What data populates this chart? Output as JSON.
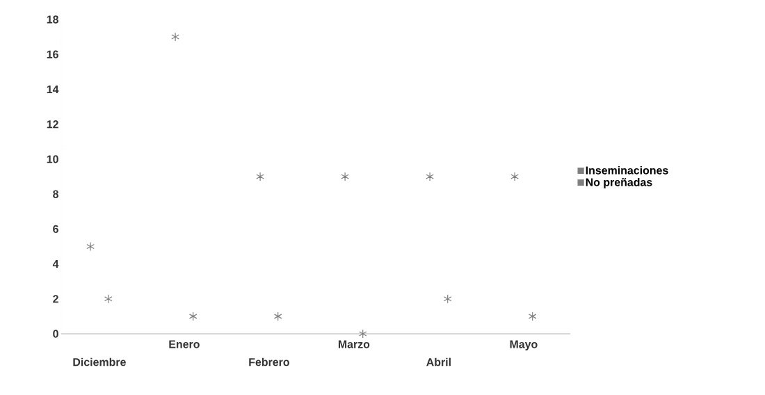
{
  "chart_data": {
    "type": "scatter",
    "categories": [
      "Diciembre",
      "Enero",
      "Febrero",
      "Marzo",
      "Abril",
      "Mayo"
    ],
    "series": [
      {
        "name": "Inseminaciones",
        "color": "#7f7f7f",
        "values": [
          5,
          17,
          9,
          9,
          9,
          9
        ]
      },
      {
        "name": "No preñadas",
        "color": "#7f7f7f",
        "values": [
          2,
          1,
          1,
          0,
          2,
          1
        ]
      }
    ],
    "ylim": [
      0,
      18
    ],
    "yticks": [
      0,
      2,
      4,
      6,
      8,
      10,
      12,
      14,
      16,
      18
    ],
    "marker": "cross",
    "legend": "right",
    "grid": false
  }
}
